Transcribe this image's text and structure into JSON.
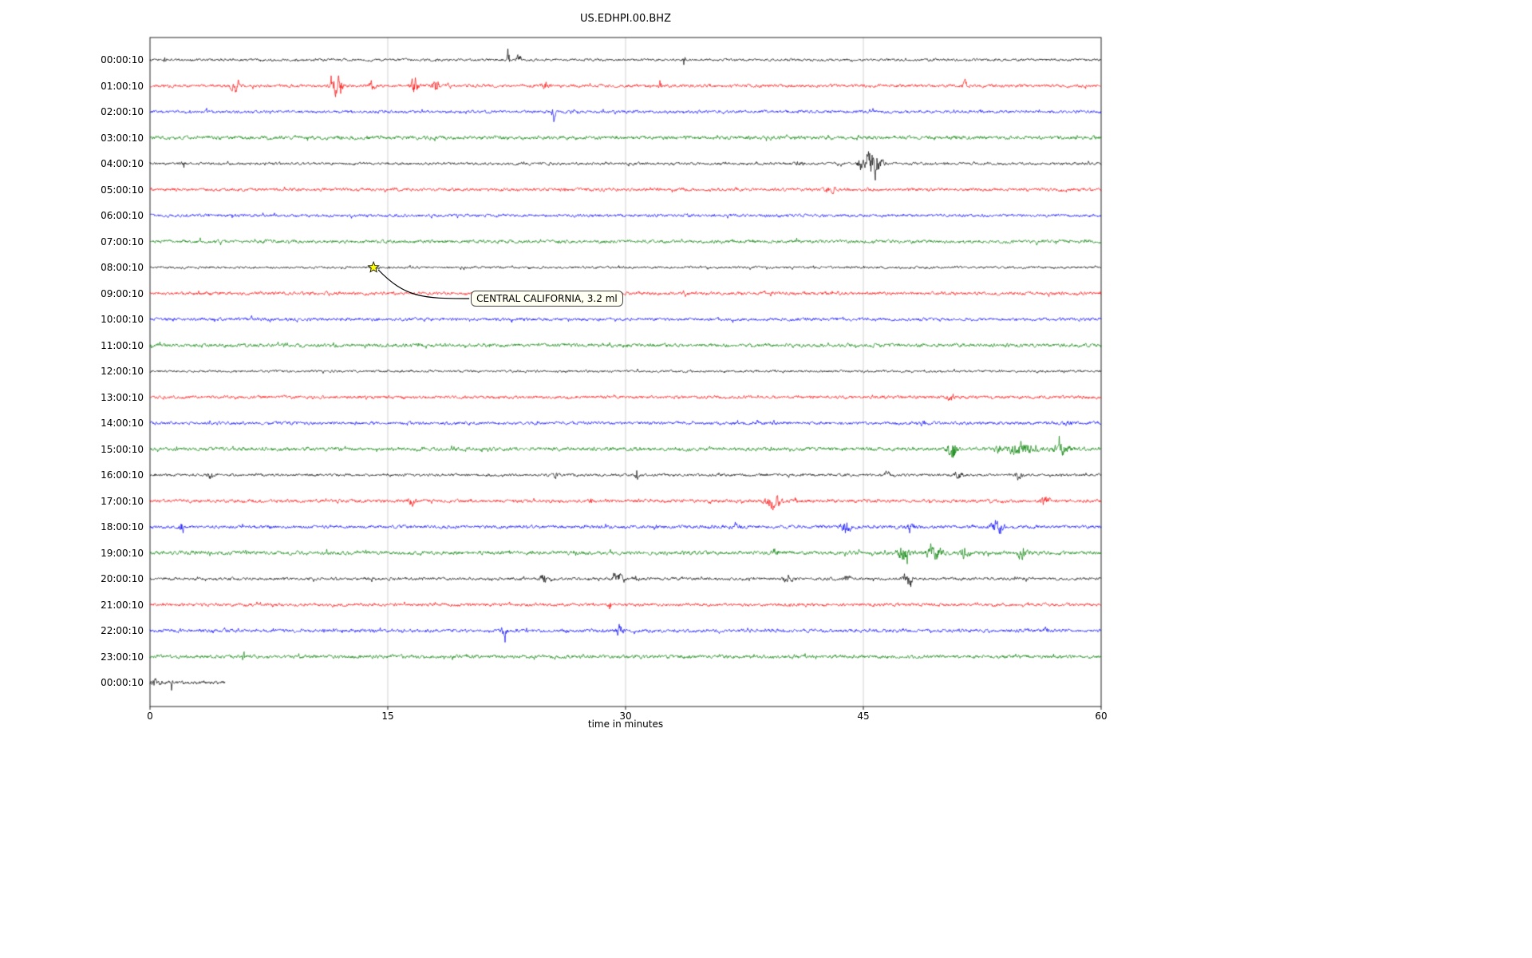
{
  "figure": {
    "title": "US.EDHPI.00.BHZ",
    "xlabel": "time in minutes"
  },
  "chart_data": {
    "type": "line",
    "subtype": "seismogram-dayplot",
    "title": "US.EDHPI.00.BHZ",
    "xlabel": "time in minutes",
    "xlim": [
      0,
      60
    ],
    "x_ticks": [
      "0",
      "15",
      "30",
      "45",
      "60"
    ],
    "x_tick_values": [
      0,
      15,
      30,
      45,
      60
    ],
    "grid_x": [
      15,
      30,
      45
    ],
    "grid_color": "#cccccc",
    "trace_colors_cycle": [
      "#000000",
      "#ff0000",
      "#0000ff",
      "#008000"
    ],
    "rows": [
      {
        "label": "00:00:10",
        "color": "#000000",
        "amp": 1.6,
        "extent": [
          0,
          60
        ],
        "events": [
          [
            0.9,
            5,
            0.06
          ],
          [
            22.6,
            14,
            0.08
          ],
          [
            23.3,
            6,
            0.15
          ],
          [
            33.7,
            9,
            0.05
          ]
        ]
      },
      {
        "label": "01:00:10",
        "color": "#ff0000",
        "amp": 2.0,
        "extent": [
          0,
          60
        ],
        "events": [
          [
            5.4,
            9,
            0.25
          ],
          [
            11.8,
            13,
            0.35
          ],
          [
            14.0,
            5,
            0.2
          ],
          [
            16.7,
            11,
            0.25
          ],
          [
            18.0,
            10,
            0.2
          ],
          [
            25.0,
            6,
            0.2
          ],
          [
            32.2,
            7,
            0.1
          ],
          [
            51.4,
            5,
            0.15
          ]
        ]
      },
      {
        "label": "02:00:10",
        "color": "#0000ff",
        "amp": 1.9,
        "extent": [
          0,
          60
        ],
        "events": [
          [
            25.5,
            9,
            0.1
          ]
        ]
      },
      {
        "label": "03:00:10",
        "color": "#008000",
        "amp": 2.3,
        "extent": [
          0,
          60
        ],
        "events": []
      },
      {
        "label": "04:00:10",
        "color": "#000000",
        "amp": 1.7,
        "extent": [
          0,
          60
        ],
        "events": [
          [
            2.1,
            7,
            0.07
          ],
          [
            41.0,
            3,
            0.2
          ],
          [
            44.8,
            6,
            0.2
          ],
          [
            45.6,
            20,
            0.45
          ]
        ]
      },
      {
        "label": "05:00:10",
        "color": "#ff0000",
        "amp": 2.0,
        "extent": [
          0,
          60
        ],
        "events": [
          [
            43.0,
            3,
            0.3
          ]
        ]
      },
      {
        "label": "06:00:10",
        "color": "#0000ff",
        "amp": 1.9,
        "extent": [
          0,
          60
        ],
        "events": []
      },
      {
        "label": "07:00:10",
        "color": "#008000",
        "amp": 2.1,
        "extent": [
          0,
          60
        ],
        "events": []
      },
      {
        "label": "08:00:10",
        "color": "#000000",
        "amp": 1.5,
        "extent": [
          0,
          60
        ],
        "events": []
      },
      {
        "label": "09:00:10",
        "color": "#ff0000",
        "amp": 2.0,
        "extent": [
          0,
          60
        ],
        "events": []
      },
      {
        "label": "10:00:10",
        "color": "#0000ff",
        "amp": 2.0,
        "extent": [
          0,
          60
        ],
        "events": []
      },
      {
        "label": "11:00:10",
        "color": "#008000",
        "amp": 2.2,
        "extent": [
          0,
          60
        ],
        "events": []
      },
      {
        "label": "12:00:10",
        "color": "#000000",
        "amp": 1.5,
        "extent": [
          0,
          60
        ],
        "events": []
      },
      {
        "label": "13:00:10",
        "color": "#ff0000",
        "amp": 2.0,
        "extent": [
          0,
          60
        ],
        "events": [
          [
            50.5,
            4,
            0.2
          ]
        ]
      },
      {
        "label": "14:00:10",
        "color": "#0000ff",
        "amp": 2.0,
        "extent": [
          0,
          60
        ],
        "events": [
          [
            48.8,
            4,
            0.2
          ],
          [
            58.0,
            3,
            0.2
          ]
        ]
      },
      {
        "label": "15:00:10",
        "color": "#008000",
        "amp": 2.3,
        "extent": [
          0,
          60
        ],
        "events": [
          [
            50.6,
            18,
            0.25
          ],
          [
            53.5,
            4,
            0.3
          ],
          [
            55.0,
            7,
            0.8
          ],
          [
            57.5,
            7,
            0.5
          ]
        ]
      },
      {
        "label": "16:00:10",
        "color": "#000000",
        "amp": 1.7,
        "extent": [
          0,
          60
        ],
        "events": [
          [
            3.8,
            4,
            0.2
          ],
          [
            25.6,
            5,
            0.1
          ],
          [
            30.7,
            11,
            0.08
          ],
          [
            46.5,
            4,
            0.15
          ],
          [
            51.0,
            4,
            0.3
          ],
          [
            54.8,
            5,
            0.2
          ]
        ]
      },
      {
        "label": "17:00:10",
        "color": "#ff0000",
        "amp": 2.1,
        "extent": [
          0,
          60
        ],
        "events": [
          [
            16.5,
            5,
            0.2
          ],
          [
            27.8,
            5,
            0.1
          ],
          [
            39.3,
            8,
            0.5
          ],
          [
            56.5,
            5,
            0.3
          ]
        ]
      },
      {
        "label": "18:00:10",
        "color": "#0000ff",
        "amp": 2.1,
        "extent": [
          0,
          60
        ],
        "events": [
          [
            2.0,
            5,
            0.15
          ],
          [
            37.0,
            4,
            0.2
          ],
          [
            43.9,
            8,
            0.3
          ],
          [
            48.0,
            3,
            0.3
          ],
          [
            53.4,
            8,
            0.35
          ]
        ]
      },
      {
        "label": "19:00:10",
        "color": "#008000",
        "amp": 2.4,
        "extent": [
          0,
          60
        ],
        "events": [
          [
            39.5,
            4,
            0.2
          ],
          [
            47.5,
            9,
            0.4
          ],
          [
            49.5,
            8,
            0.5
          ],
          [
            51.5,
            7,
            0.3
          ],
          [
            55.0,
            7,
            0.3
          ]
        ]
      },
      {
        "label": "20:00:10",
        "color": "#000000",
        "amp": 1.8,
        "extent": [
          0,
          60
        ],
        "events": [
          [
            24.8,
            9,
            0.15
          ],
          [
            29.5,
            7,
            0.3
          ],
          [
            30.7,
            8,
            0.1
          ],
          [
            40.3,
            5,
            0.3
          ],
          [
            44.0,
            4,
            0.2
          ],
          [
            47.8,
            7,
            0.3
          ]
        ]
      },
      {
        "label": "21:00:10",
        "color": "#ff0000",
        "amp": 2.0,
        "extent": [
          0,
          60
        ],
        "events": [
          [
            29.0,
            7,
            0.08
          ]
        ]
      },
      {
        "label": "22:00:10",
        "color": "#0000ff",
        "amp": 2.1,
        "extent": [
          0,
          60
        ],
        "events": [
          [
            22.3,
            6,
            0.2
          ],
          [
            29.6,
            7,
            0.25
          ],
          [
            56.5,
            4,
            0.2
          ]
        ]
      },
      {
        "label": "23:00:10",
        "color": "#008000",
        "amp": 2.2,
        "extent": [
          0,
          60
        ],
        "events": [
          [
            5.9,
            7,
            0.08
          ]
        ]
      },
      {
        "label": "00:00:10",
        "color": "#000000",
        "amp": 2.2,
        "extent": [
          0,
          4.75
        ],
        "events": [
          [
            0.3,
            3,
            0.3
          ],
          [
            1.35,
            11,
            0.05
          ]
        ]
      }
    ],
    "annotation": {
      "text": "CENTRAL CALIFORNIA, 3.2 ml",
      "row_index": 8,
      "x_minutes": 14.1,
      "marker": "star",
      "marker_color": "#ffff00",
      "marker_edge_color": "#000000"
    }
  }
}
